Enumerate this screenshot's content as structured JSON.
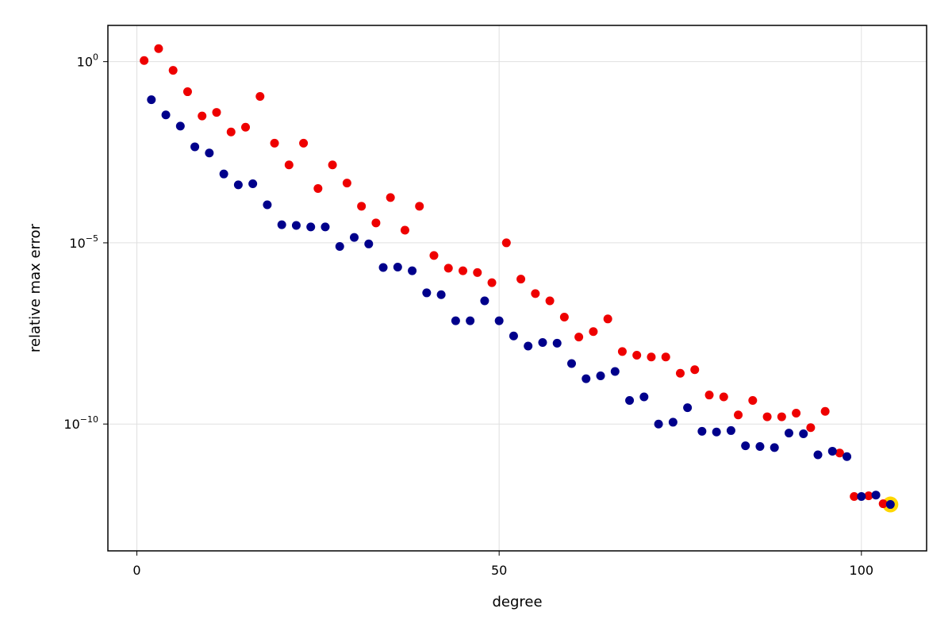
{
  "chart_data": {
    "type": "scatter",
    "title": "",
    "xlabel": "degree",
    "ylabel": "relative max error",
    "xlim": [
      -4,
      109
    ],
    "ylim_log10": [
      -13.5,
      1
    ],
    "yscale": "log10",
    "grid": true,
    "x_ticks": [
      {
        "value": 0,
        "label": "0"
      },
      {
        "value": 50,
        "label": "50"
      },
      {
        "value": 100,
        "label": "100"
      }
    ],
    "y_ticks": [
      {
        "exp": 0,
        "base": "10",
        "sup": "0"
      },
      {
        "exp": -5,
        "base": "10",
        "sup": "−5"
      },
      {
        "exp": -10,
        "base": "10",
        "sup": "−10"
      }
    ],
    "series": [
      {
        "color": "#ee0000",
        "x": [
          1,
          3,
          5,
          7,
          9,
          11,
          13,
          15,
          17,
          19,
          21,
          23,
          25,
          27,
          29,
          31,
          33,
          35,
          37,
          39,
          41,
          43,
          45,
          47,
          49,
          51,
          53,
          55,
          57,
          59,
          61,
          63,
          65,
          67,
          69,
          71,
          73,
          75,
          77,
          79,
          81,
          83,
          85,
          87,
          89,
          91,
          93,
          95,
          97,
          99,
          101,
          103
        ],
        "y_log10": [
          0.03,
          0.36,
          -0.24,
          -0.83,
          -1.5,
          -1.4,
          -1.94,
          -1.81,
          -0.96,
          -2.25,
          -2.85,
          -2.25,
          -3.5,
          -2.85,
          -3.35,
          -3.99,
          -4.45,
          -3.75,
          -4.65,
          -3.99,
          -5.35,
          -5.7,
          -5.77,
          -5.82,
          -6.1,
          -5.0,
          -6.0,
          -6.4,
          -6.6,
          -7.05,
          -7.6,
          -7.45,
          -7.1,
          -8.0,
          -8.1,
          -8.15,
          -8.15,
          -8.6,
          -8.5,
          -9.2,
          -9.25,
          -9.75,
          -9.35,
          -9.8,
          -9.8,
          -9.7,
          -10.1,
          -9.65,
          -10.8,
          -12.0,
          -11.98,
          -12.2
        ]
      },
      {
        "color": "#00008b",
        "x": [
          2,
          4,
          6,
          8,
          10,
          12,
          14,
          16,
          18,
          20,
          22,
          24,
          26,
          28,
          30,
          32,
          34,
          36,
          38,
          40,
          42,
          44,
          46,
          48,
          50,
          52,
          54,
          56,
          58,
          60,
          62,
          64,
          66,
          68,
          70,
          72,
          74,
          76,
          78,
          80,
          82,
          84,
          86,
          88,
          90,
          92,
          94,
          96,
          98,
          100,
          102,
          104
        ],
        "y_log10": [
          -1.05,
          -1.47,
          -1.78,
          -2.35,
          -2.52,
          -3.1,
          -3.4,
          -3.37,
          -3.95,
          -4.5,
          -4.52,
          -4.56,
          -4.56,
          -5.1,
          -4.85,
          -5.03,
          -5.68,
          -5.67,
          -5.77,
          -6.38,
          -6.43,
          -7.15,
          -7.15,
          -6.6,
          -7.15,
          -7.57,
          -7.85,
          -7.75,
          -7.77,
          -8.33,
          -8.75,
          -8.67,
          -8.55,
          -9.35,
          -9.25,
          -10.0,
          -9.95,
          -9.55,
          -10.2,
          -10.22,
          -10.18,
          -10.6,
          -10.62,
          -10.65,
          -10.25,
          -10.27,
          -10.85,
          -10.75,
          -10.9,
          -12.0,
          -11.96,
          -12.22
        ]
      }
    ],
    "highlight": {
      "x": 104,
      "y_log10": -12.22,
      "color": "#ffd700"
    }
  }
}
